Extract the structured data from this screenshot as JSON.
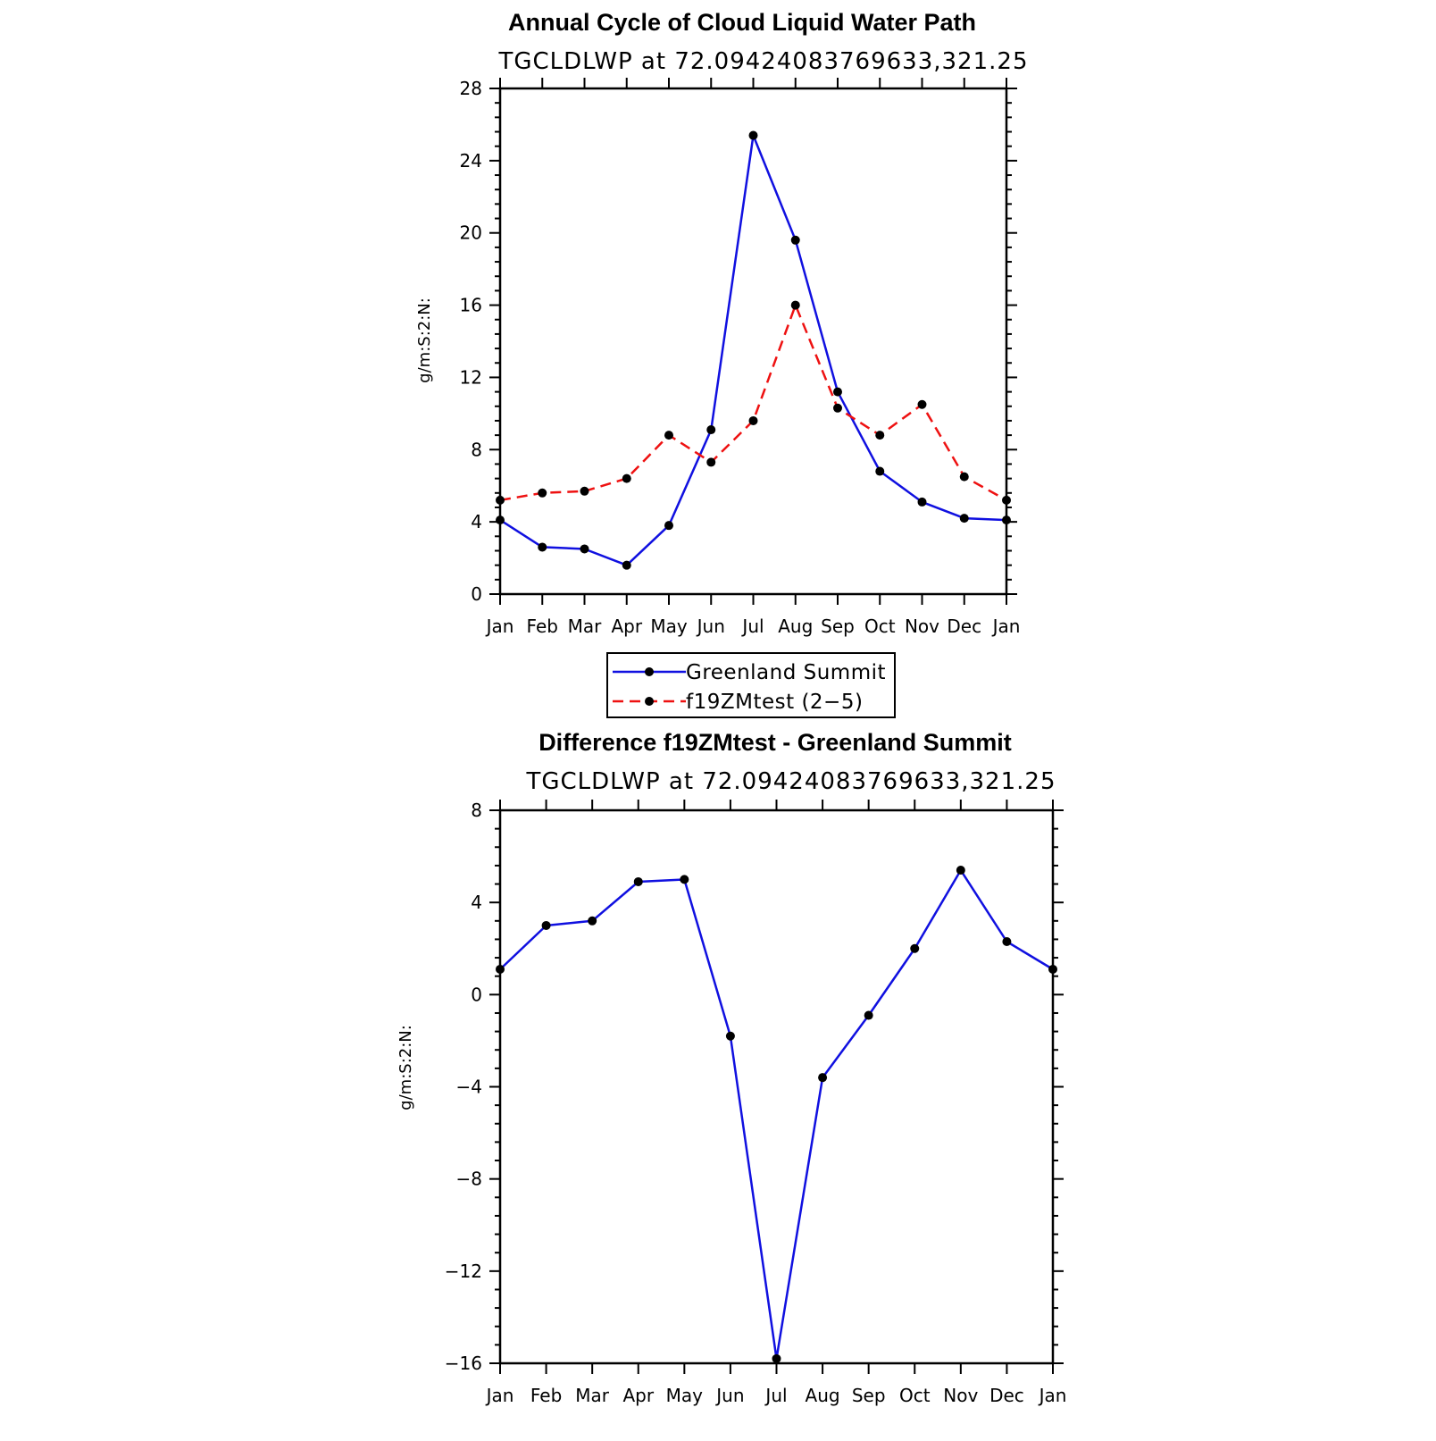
{
  "chart_data": [
    {
      "type": "line",
      "title": "Annual Cycle of Cloud Liquid Water Path",
      "subtitle": "TGCLDLWP  at  72.09424083769633,321.25",
      "ylabel": "g/m:S:2:N:",
      "categories": [
        "Jan",
        "Feb",
        "Mar",
        "Apr",
        "May",
        "Jun",
        "Jul",
        "Aug",
        "Sep",
        "Oct",
        "Nov",
        "Dec",
        "Jan"
      ],
      "ylim": [
        0,
        28
      ],
      "yticks": [
        0,
        4,
        8,
        12,
        16,
        20,
        24,
        28
      ],
      "series": [
        {
          "name": "Greenland Summit",
          "color": "#1010e0",
          "dash": "solid",
          "values": [
            4.1,
            2.6,
            2.5,
            1.6,
            3.8,
            9.1,
            25.4,
            19.6,
            11.2,
            6.8,
            5.1,
            4.2,
            4.1
          ]
        },
        {
          "name": "f19ZMtest (2−5)",
          "color": "#ee1111",
          "dash": "dashed",
          "values": [
            5.2,
            5.6,
            5.7,
            6.4,
            8.8,
            7.3,
            9.6,
            16.0,
            10.3,
            8.8,
            10.5,
            6.5,
            5.2
          ]
        }
      ],
      "legend": {
        "placement": "bottom-center"
      }
    },
    {
      "type": "line",
      "title": "Difference f19ZMtest - Greenland Summit",
      "subtitle": "TGCLDLWP  at  72.09424083769633,321.25",
      "ylabel": "g/m:S:2:N:",
      "categories": [
        "Jan",
        "Feb",
        "Mar",
        "Apr",
        "May",
        "Jun",
        "Jul",
        "Aug",
        "Sep",
        "Oct",
        "Nov",
        "Dec",
        "Jan"
      ],
      "ylim": [
        -16,
        8
      ],
      "yticks": [
        -16,
        -12,
        -8,
        -4,
        0,
        4,
        8
      ],
      "series": [
        {
          "color": "#1010e0",
          "dash": "solid",
          "values": [
            1.1,
            3.0,
            3.2,
            4.9,
            5.0,
            -1.8,
            -15.8,
            -3.6,
            -0.9,
            2.0,
            5.4,
            2.3,
            1.1
          ]
        }
      ]
    }
  ]
}
